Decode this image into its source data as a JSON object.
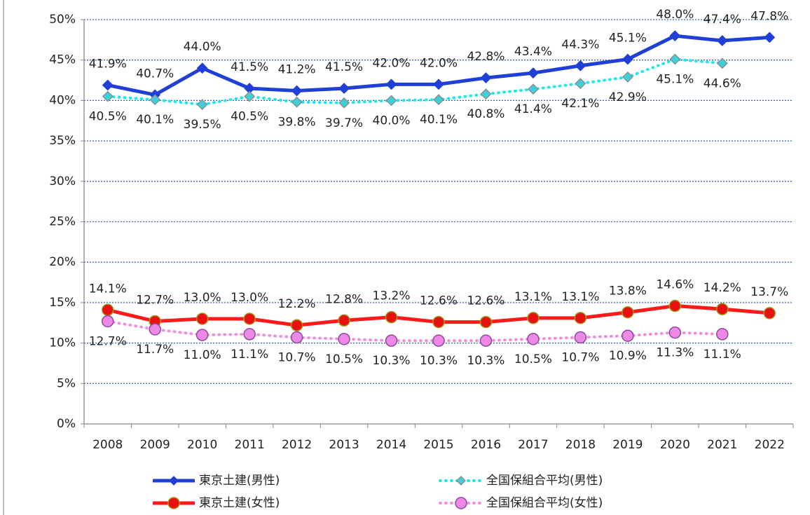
{
  "chart_data": {
    "type": "line",
    "categories": [
      "2008",
      "2009",
      "2010",
      "2011",
      "2012",
      "2013",
      "2014",
      "2015",
      "2016",
      "2017",
      "2018",
      "2019",
      "2020",
      "2021",
      "2022"
    ],
    "ylim": [
      0,
      50
    ],
    "yticks": [
      {
        "value": 0,
        "label": "0%"
      },
      {
        "value": 5,
        "label": "5%"
      },
      {
        "value": 10,
        "label": "10%"
      },
      {
        "value": 15,
        "label": "15%"
      },
      {
        "value": 20,
        "label": "20%"
      },
      {
        "value": 25,
        "label": "25%"
      },
      {
        "value": 30,
        "label": "30%"
      },
      {
        "value": 35,
        "label": "35%"
      },
      {
        "value": 40,
        "label": "40%"
      },
      {
        "value": 45,
        "label": "45%"
      },
      {
        "value": 50,
        "label": "50%"
      }
    ],
    "grid": true,
    "legend": "bottom",
    "series": [
      {
        "name": "東京土建(男性)",
        "color": "#1f3fd6",
        "marker": "diamond",
        "marker_fill": "#1f3fd6",
        "marker_stroke": "#1f3fd6",
        "dash": "solid",
        "label_side": "above",
        "values": [
          41.9,
          40.7,
          44.0,
          41.5,
          41.2,
          41.5,
          42.0,
          42.0,
          42.8,
          43.4,
          44.3,
          45.1,
          48.0,
          47.4,
          47.8
        ],
        "value_labels": [
          "41.9%",
          "40.7%",
          "44.0%",
          "41.5%",
          "41.2%",
          "41.5%",
          "42.0%",
          "42.0%",
          "42.8%",
          "43.4%",
          "44.3%",
          "45.1%",
          "48.0%",
          "47.4%",
          "47.8%"
        ]
      },
      {
        "name": "全国保組合平均(男性)",
        "color": "#22e6f0",
        "marker": "diamond",
        "marker_fill": "#3fcfd8",
        "marker_stroke": "#8a8a8a",
        "dash": "dotted",
        "label_side": "below",
        "values": [
          40.5,
          40.1,
          39.5,
          40.5,
          39.8,
          39.7,
          40.0,
          40.1,
          40.8,
          41.4,
          42.1,
          42.9,
          45.1,
          44.6,
          null
        ],
        "value_labels": [
          "40.5%",
          "40.1%",
          "39.5%",
          "40.5%",
          "39.8%",
          "39.7%",
          "40.0%",
          "40.1%",
          "40.8%",
          "41.4%",
          "42.1%",
          "42.9%",
          "45.1%",
          "44.6%",
          null
        ]
      },
      {
        "name": "東京土建(女性)",
        "color": "#ff1a1a",
        "marker": "circle",
        "marker_fill": "#e81010",
        "marker_stroke": "#9a9a20",
        "dash": "solid",
        "label_side": "above",
        "values": [
          14.1,
          12.7,
          13.0,
          13.0,
          12.2,
          12.8,
          13.2,
          12.6,
          12.6,
          13.1,
          13.1,
          13.8,
          14.6,
          14.2,
          13.7
        ],
        "value_labels": [
          "14.1%",
          "12.7%",
          "13.0%",
          "13.0%",
          "12.2%",
          "12.8%",
          "13.2%",
          "12.6%",
          "12.6%",
          "13.1%",
          "13.1%",
          "13.8%",
          "14.6%",
          "14.2%",
          "13.7%"
        ]
      },
      {
        "name": "全国保組合平均(女性)",
        "color": "#f090e0",
        "marker": "circle",
        "marker_fill": "#ee88e6",
        "marker_stroke": "#8a4a9a",
        "dash": "dotted",
        "label_side": "below",
        "values": [
          12.7,
          11.7,
          11.0,
          11.1,
          10.7,
          10.5,
          10.3,
          10.3,
          10.3,
          10.5,
          10.7,
          10.9,
          11.3,
          11.1,
          null
        ],
        "value_labels": [
          "12.7%",
          "11.7%",
          "11.0%",
          "11.1%",
          "10.7%",
          "10.5%",
          "10.3%",
          "10.3%",
          "10.3%",
          "10.5%",
          "10.7%",
          "10.9%",
          "11.3%",
          "11.1%",
          null
        ]
      }
    ]
  }
}
